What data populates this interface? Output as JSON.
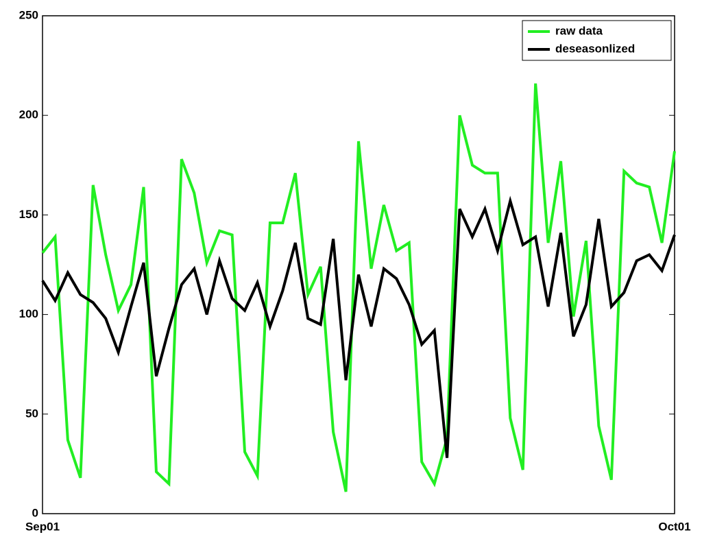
{
  "chart_data": {
    "type": "line",
    "x": [
      0,
      1,
      2,
      3,
      4,
      5,
      6,
      7,
      8,
      9,
      10,
      11,
      12,
      13,
      14,
      15,
      16,
      17,
      18,
      19,
      20,
      21,
      22,
      23,
      24,
      25,
      26,
      27,
      28,
      29,
      30,
      31,
      32,
      33,
      34,
      35,
      36,
      37,
      38,
      39,
      40,
      41,
      42,
      43,
      44,
      45,
      46,
      47,
      48,
      49,
      50
    ],
    "xlim": [
      0,
      50
    ],
    "xticks": [
      {
        "value": 0,
        "label": "Sep01"
      },
      {
        "value": 50,
        "label": "Oct01"
      }
    ],
    "ylim": [
      0,
      250
    ],
    "yticks": [
      0,
      50,
      100,
      150,
      200,
      250
    ],
    "grid": false,
    "legend": "upper right",
    "series": [
      {
        "name": "raw data",
        "color": "#22ee22",
        "values": [
          131,
          139,
          37,
          18,
          165,
          130,
          102,
          115,
          164,
          21,
          15,
          178,
          161,
          126,
          142,
          140,
          31,
          19,
          146,
          146,
          171,
          110,
          124,
          41,
          11,
          187,
          123,
          155,
          132,
          136,
          26,
          15,
          38,
          200,
          175,
          171,
          171,
          48,
          22,
          216,
          136,
          177,
          99,
          137,
          44,
          17,
          172,
          166,
          164,
          136,
          182
        ]
      },
      {
        "name": "deseasonlized",
        "color": "#000000",
        "values": [
          117,
          107,
          121,
          110,
          106,
          98,
          81,
          104,
          126,
          69,
          93,
          115,
          123,
          100,
          127,
          108,
          102,
          116,
          94,
          112,
          136,
          98,
          95,
          138,
          67,
          120,
          94,
          123,
          118,
          105,
          85,
          92,
          28,
          153,
          139,
          153,
          132,
          157,
          135,
          139,
          104,
          141,
          89,
          105,
          148,
          104,
          111,
          127,
          130,
          122,
          140
        ]
      }
    ]
  }
}
